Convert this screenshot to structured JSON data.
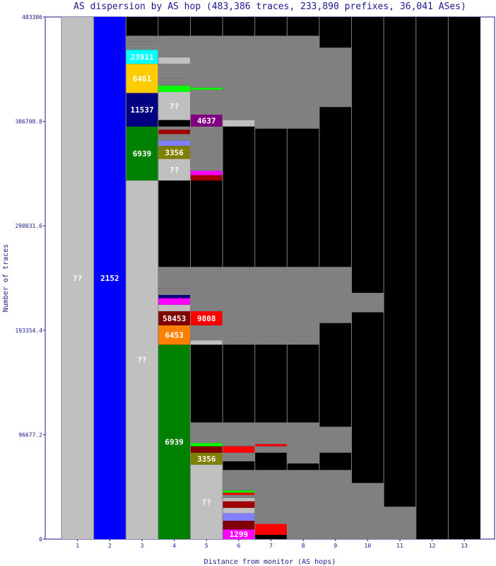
{
  "chart_data": {
    "type": "bar",
    "title": "AS dispersion by AS hop (483,386 traces, 233,890 prefixes, 36,041 ASes)",
    "xlabel": "Distance from monitor (AS hops)",
    "ylabel": "Number of traces",
    "ylim": [
      0,
      483386
    ],
    "y_ticks": [
      "0",
      "96677.2",
      "193354.4",
      "290031.6",
      "386708.8",
      "483386"
    ],
    "categories": [
      "1",
      "2",
      "3",
      "4",
      "5",
      "6",
      "7",
      "8",
      "9",
      "10",
      "11",
      "12",
      "13"
    ],
    "colors": {
      "unknown": "#c0c0c0",
      "blue": "#0000ff",
      "cyan": "#00ffff",
      "gold": "#ffcc00",
      "navy": "#000080",
      "green": "#008000",
      "olive": "#808000",
      "purple": "#800080",
      "maroon": "#800000",
      "red": "#ff0000",
      "orange": "#ff8000",
      "magenta": "#ff00ff",
      "lime": "#00ff00",
      "periwinkle": "#8080ff",
      "darkred": "#a00000",
      "minor": "#808080",
      "background": "#000000",
      "grid": "#808080",
      "text": "#1a1a8c"
    },
    "columns": [
      {
        "hop": 1,
        "segments": [
          {
            "from": 0,
            "to": 483386,
            "color": "unknown",
            "label": "??"
          }
        ]
      },
      {
        "hop": 2,
        "segments": [
          {
            "from": 0,
            "to": 483386,
            "color": "blue",
            "label": "2152"
          }
        ]
      },
      {
        "hop": 3,
        "segments": [
          {
            "from": 0,
            "to": 332000,
            "color": "unknown",
            "label": "??"
          },
          {
            "from": 332000,
            "to": 382000,
            "color": "green",
            "label": "6939"
          },
          {
            "from": 382000,
            "to": 413000,
            "color": "navy",
            "label": "11537"
          },
          {
            "from": 413000,
            "to": 440000,
            "color": "gold",
            "label": "6461"
          },
          {
            "from": 440000,
            "to": 453000,
            "color": "cyan",
            "label": "23911"
          },
          {
            "from": 453000,
            "to": 461000,
            "color": "minor",
            "label": ""
          },
          {
            "from": 461000,
            "to": 466000,
            "color": "minor",
            "label": ""
          }
        ]
      },
      {
        "hop": 4,
        "segments": [
          {
            "from": 0,
            "to": 180000,
            "color": "green",
            "label": "6939"
          },
          {
            "from": 180000,
            "to": 198000,
            "color": "orange",
            "label": "6453"
          },
          {
            "from": 198000,
            "to": 211000,
            "color": "maroon",
            "label": "58453"
          },
          {
            "from": 211000,
            "to": 217000,
            "color": "unknown",
            "label": ""
          },
          {
            "from": 217000,
            "to": 223000,
            "color": "magenta",
            "label": ""
          },
          {
            "from": 223000,
            "to": 226000,
            "color": "navy",
            "label": ""
          },
          {
            "from": 226000,
            "to": 232000,
            "color": "minor",
            "label": ""
          },
          {
            "from": 232000,
            "to": 252000,
            "color": "minor",
            "label": ""
          },
          {
            "from": 332000,
            "to": 352000,
            "color": "unknown",
            "label": "??"
          },
          {
            "from": 352000,
            "to": 364000,
            "color": "olive",
            "label": "3356"
          },
          {
            "from": 364000,
            "to": 369000,
            "color": "periwinkle",
            "label": ""
          },
          {
            "from": 369000,
            "to": 375000,
            "color": "minor",
            "label": ""
          },
          {
            "from": 375000,
            "to": 379000,
            "color": "darkred",
            "label": ""
          },
          {
            "from": 379000,
            "to": 382000,
            "color": "minor",
            "label": ""
          },
          {
            "from": 388000,
            "to": 414000,
            "color": "unknown",
            "label": "??"
          },
          {
            "from": 414000,
            "to": 420000,
            "color": "lime",
            "label": ""
          },
          {
            "from": 420000,
            "to": 427000,
            "color": "minor",
            "label": ""
          },
          {
            "from": 427000,
            "to": 440000,
            "color": "minor",
            "label": ""
          },
          {
            "from": 440000,
            "to": 446000,
            "color": "unknown",
            "label": ""
          },
          {
            "from": 446000,
            "to": 466000,
            "color": "minor",
            "label": ""
          }
        ]
      },
      {
        "hop": 5,
        "segments": [
          {
            "from": 0,
            "to": 69000,
            "color": "unknown",
            "label": "??"
          },
          {
            "from": 69000,
            "to": 80000,
            "color": "olive",
            "label": "3356"
          },
          {
            "from": 80000,
            "to": 86000,
            "color": "maroon",
            "label": ""
          },
          {
            "from": 86000,
            "to": 89000,
            "color": "lime",
            "label": ""
          },
          {
            "from": 89000,
            "to": 108000,
            "color": "minor",
            "label": ""
          },
          {
            "from": 180000,
            "to": 184000,
            "color": "unknown",
            "label": ""
          },
          {
            "from": 184000,
            "to": 198000,
            "color": "minor",
            "label": ""
          },
          {
            "from": 198000,
            "to": 211000,
            "color": "red",
            "label": "9808"
          },
          {
            "from": 211000,
            "to": 252000,
            "color": "minor",
            "label": ""
          },
          {
            "from": 332000,
            "to": 337000,
            "color": "darkred",
            "label": ""
          },
          {
            "from": 337000,
            "to": 341000,
            "color": "magenta",
            "label": ""
          },
          {
            "from": 341000,
            "to": 382000,
            "color": "minor",
            "label": ""
          },
          {
            "from": 382000,
            "to": 393000,
            "color": "purple",
            "label": "4637"
          },
          {
            "from": 393000,
            "to": 416000,
            "color": "minor",
            "label": ""
          },
          {
            "from": 416000,
            "to": 418000,
            "color": "lime",
            "label": ""
          },
          {
            "from": 418000,
            "to": 466000,
            "color": "minor",
            "label": ""
          }
        ]
      },
      {
        "hop": 6,
        "segments": [
          {
            "from": 0,
            "to": 9000,
            "color": "magenta",
            "label": "1299"
          },
          {
            "from": 9000,
            "to": 17000,
            "color": "maroon",
            "label": ""
          },
          {
            "from": 17000,
            "to": 24000,
            "color": "periwinkle",
            "label": ""
          },
          {
            "from": 24000,
            "to": 29000,
            "color": "unknown",
            "label": ""
          },
          {
            "from": 29000,
            "to": 35000,
            "color": "darkred",
            "label": ""
          },
          {
            "from": 35000,
            "to": 38000,
            "color": "unknown",
            "label": ""
          },
          {
            "from": 38000,
            "to": 41000,
            "color": "minor",
            "label": ""
          },
          {
            "from": 41000,
            "to": 43000,
            "color": "red",
            "label": ""
          },
          {
            "from": 43000,
            "to": 45000,
            "color": "lime",
            "label": ""
          },
          {
            "from": 45000,
            "to": 64000,
            "color": "minor",
            "label": ""
          },
          {
            "from": 72000,
            "to": 80000,
            "color": "minor",
            "label": ""
          },
          {
            "from": 80000,
            "to": 86000,
            "color": "red",
            "label": ""
          },
          {
            "from": 86000,
            "to": 108000,
            "color": "minor",
            "label": ""
          },
          {
            "from": 180000,
            "to": 252000,
            "color": "minor",
            "label": ""
          },
          {
            "from": 382000,
            "to": 388000,
            "color": "unknown",
            "label": ""
          },
          {
            "from": 388000,
            "to": 466000,
            "color": "minor",
            "label": ""
          }
        ]
      },
      {
        "hop": 7,
        "segments": [
          {
            "from": 4000,
            "to": 14000,
            "color": "red",
            "label": ""
          },
          {
            "from": 14000,
            "to": 20000,
            "color": "minor",
            "label": ""
          },
          {
            "from": 20000,
            "to": 64000,
            "color": "minor",
            "label": ""
          },
          {
            "from": 80000,
            "to": 86000,
            "color": "minor",
            "label": ""
          },
          {
            "from": 86000,
            "to": 88000,
            "color": "red",
            "label": ""
          },
          {
            "from": 88000,
            "to": 108000,
            "color": "minor",
            "label": ""
          },
          {
            "from": 180000,
            "to": 252000,
            "color": "minor",
            "label": ""
          },
          {
            "from": 380000,
            "to": 466000,
            "color": "minor",
            "label": ""
          }
        ]
      },
      {
        "hop": 8,
        "segments": [
          {
            "from": 0,
            "to": 64000,
            "color": "minor",
            "label": ""
          },
          {
            "from": 70000,
            "to": 108000,
            "color": "minor",
            "label": ""
          },
          {
            "from": 180000,
            "to": 252000,
            "color": "minor",
            "label": ""
          },
          {
            "from": 380000,
            "to": 466000,
            "color": "minor",
            "label": ""
          }
        ]
      },
      {
        "hop": 9,
        "segments": [
          {
            "from": 0,
            "to": 64000,
            "color": "minor",
            "label": ""
          },
          {
            "from": 80000,
            "to": 104000,
            "color": "minor",
            "label": ""
          },
          {
            "from": 200000,
            "to": 252000,
            "color": "minor",
            "label": ""
          },
          {
            "from": 400000,
            "to": 455000,
            "color": "minor",
            "label": ""
          }
        ]
      },
      {
        "hop": 10,
        "segments": [
          {
            "from": 0,
            "to": 52000,
            "color": "minor",
            "label": ""
          },
          {
            "from": 210000,
            "to": 228000,
            "color": "minor",
            "label": ""
          }
        ]
      },
      {
        "hop": 11,
        "segments": [
          {
            "from": 0,
            "to": 30000,
            "color": "minor",
            "label": ""
          }
        ]
      },
      {
        "hop": 12,
        "segments": []
      },
      {
        "hop": 13,
        "segments": []
      }
    ]
  }
}
